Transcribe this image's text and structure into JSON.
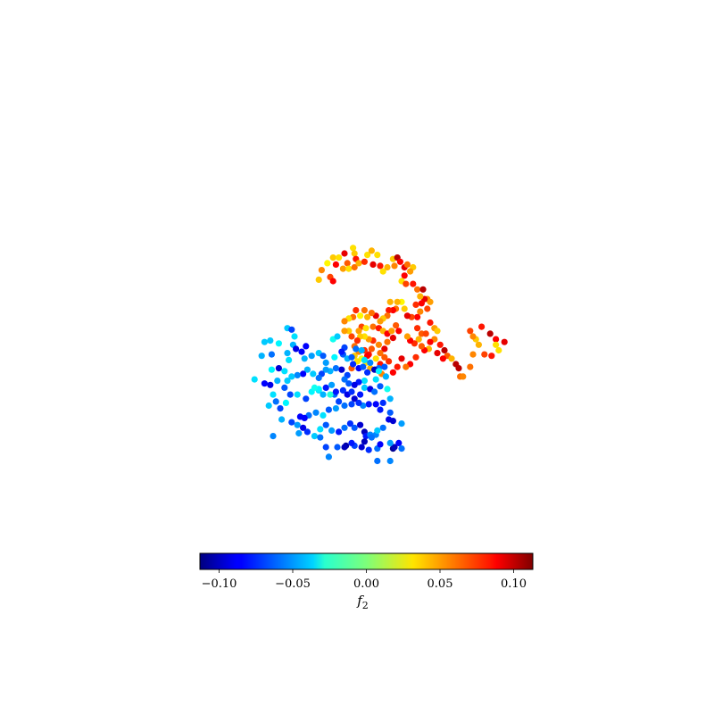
{
  "chart_data": {
    "type": "scatter",
    "title": "",
    "xlabel": "",
    "ylabel": "",
    "axes_visible": false,
    "grid": false,
    "colormap": "jet",
    "colorbar": {
      "orientation": "horizontal",
      "placement": "bottom",
      "label": "f",
      "label_subscript": "2",
      "vmin": -0.113,
      "vmax": 0.113,
      "ticks": [
        -0.1,
        -0.05,
        0.0,
        0.05,
        0.1
      ],
      "tick_labels": [
        "−0.10",
        "−0.05",
        "0.00",
        "0.05",
        "0.10"
      ]
    },
    "x_range": [
      -1,
      1
    ],
    "y_range": [
      -1,
      1
    ],
    "points": [
      [
        -0.14,
        0.84,
        0.035
      ],
      [
        -0.2,
        0.8,
        0.09
      ],
      [
        -0.13,
        0.8,
        0.04
      ],
      [
        -0.12,
        0.76,
        0.08
      ],
      [
        -0.18,
        0.73,
        0.065
      ],
      [
        -0.28,
        0.77,
        0.04
      ],
      [
        -0.24,
        0.77,
        0.035
      ],
      [
        -0.26,
        0.72,
        0.085
      ],
      [
        -0.32,
        0.73,
        0.03
      ],
      [
        -0.36,
        0.68,
        0.055
      ],
      [
        -0.38,
        0.61,
        0.04
      ],
      [
        -0.3,
        0.63,
        0.07
      ],
      [
        -0.28,
        0.6,
        0.085
      ],
      [
        -0.21,
        0.69,
        0.05
      ],
      [
        -0.17,
        0.69,
        0.035
      ],
      [
        -0.13,
        0.7,
        0.06
      ],
      [
        -0.1,
        0.73,
        0.045
      ],
      [
        -0.06,
        0.74,
        0.075
      ],
      [
        -0.04,
        0.79,
        0.035
      ],
      [
        -0.01,
        0.82,
        0.045
      ],
      [
        0.03,
        0.79,
        0.035
      ],
      [
        0.0,
        0.72,
        0.09
      ],
      [
        0.05,
        0.71,
        0.08
      ],
      [
        0.07,
        0.67,
        0.035
      ],
      [
        0.1,
        0.7,
        0.045
      ],
      [
        0.14,
        0.76,
        0.04
      ],
      [
        0.15,
        0.71,
        0.055
      ],
      [
        0.17,
        0.77,
        0.1
      ],
      [
        0.19,
        0.74,
        0.085
      ],
      [
        0.22,
        0.7,
        0.09
      ],
      [
        0.24,
        0.72,
        0.06
      ],
      [
        0.28,
        0.7,
        0.04
      ],
      [
        0.26,
        0.67,
        0.05
      ],
      [
        0.22,
        0.64,
        0.085
      ],
      [
        0.2,
        0.6,
        0.035
      ],
      [
        0.23,
        0.58,
        0.07
      ],
      [
        0.28,
        0.58,
        0.08
      ],
      [
        0.31,
        0.54,
        0.06
      ],
      [
        0.35,
        0.54,
        0.1
      ],
      [
        0.38,
        0.47,
        0.055
      ],
      [
        0.4,
        0.45,
        0.05
      ],
      [
        0.36,
        0.47,
        0.09
      ],
      [
        0.33,
        0.49,
        0.045
      ],
      [
        0.34,
        0.44,
        0.085
      ],
      [
        0.3,
        0.43,
        0.075
      ],
      [
        0.38,
        0.4,
        0.07
      ],
      [
        0.33,
        0.38,
        0.055
      ],
      [
        0.31,
        0.34,
        0.085
      ],
      [
        0.27,
        0.34,
        0.07
      ],
      [
        0.24,
        0.35,
        0.09
      ],
      [
        0.22,
        0.4,
        0.04
      ],
      [
        0.2,
        0.45,
        0.03
      ],
      [
        0.17,
        0.45,
        0.045
      ],
      [
        0.16,
        0.4,
        0.06
      ],
      [
        0.14,
        0.39,
        0.085
      ],
      [
        0.12,
        0.45,
        0.045
      ],
      [
        0.11,
        0.39,
        0.08
      ],
      [
        0.1,
        0.35,
        0.06
      ],
      [
        0.07,
        0.33,
        0.04
      ],
      [
        0.05,
        0.31,
        0.05
      ],
      [
        0.02,
        0.35,
        0.09
      ],
      [
        -0.01,
        0.37,
        0.06
      ],
      [
        -0.04,
        0.34,
        0.045
      ],
      [
        -0.06,
        0.39,
        0.06
      ],
      [
        -0.09,
        0.35,
        0.03
      ],
      [
        -0.12,
        0.39,
        0.075
      ],
      [
        -0.14,
        0.34,
        0.06
      ],
      [
        -0.17,
        0.33,
        0.035
      ],
      [
        -0.2,
        0.31,
        0.055
      ],
      [
        -0.08,
        0.27,
        0.07
      ],
      [
        -0.1,
        0.24,
        0.05
      ],
      [
        -0.05,
        0.26,
        0.035
      ],
      [
        0.0,
        0.27,
        0.06
      ],
      [
        0.04,
        0.26,
        0.08
      ],
      [
        0.07,
        0.24,
        0.045
      ],
      [
        0.1,
        0.22,
        0.085
      ],
      [
        0.13,
        0.24,
        0.05
      ],
      [
        0.16,
        0.28,
        0.065
      ],
      [
        0.18,
        0.24,
        0.085
      ],
      [
        0.14,
        0.19,
        0.09
      ],
      [
        0.1,
        0.16,
        0.06
      ],
      [
        0.08,
        0.11,
        0.09
      ],
      [
        0.05,
        0.08,
        0.06
      ],
      [
        0.04,
        0.14,
        0.055
      ],
      [
        0.0,
        0.17,
        0.075
      ],
      [
        -0.03,
        0.18,
        0.05
      ],
      [
        -0.06,
        0.2,
        0.035
      ],
      [
        -0.09,
        0.2,
        0.04
      ],
      [
        -0.11,
        0.17,
        0.075
      ],
      [
        -0.13,
        0.13,
        0.06
      ],
      [
        -0.15,
        0.2,
        0.07
      ],
      [
        -0.17,
        0.24,
        0.04
      ],
      [
        -0.2,
        0.24,
        0.05
      ],
      [
        -0.01,
        0.11,
        0.065
      ],
      [
        0.02,
        0.04,
        0.035
      ],
      [
        -0.03,
        0.07,
        0.08
      ],
      [
        0.31,
        0.26,
        0.075
      ],
      [
        0.34,
        0.22,
        0.065
      ],
      [
        0.32,
        0.18,
        0.045
      ],
      [
        0.29,
        0.15,
        0.075
      ],
      [
        0.26,
        0.17,
        0.085
      ],
      [
        0.24,
        0.2,
        0.05
      ],
      [
        0.4,
        0.3,
        0.08
      ],
      [
        0.43,
        0.26,
        0.05
      ],
      [
        0.45,
        0.24,
        0.04
      ],
      [
        0.43,
        0.18,
        0.055
      ],
      [
        0.47,
        0.14,
        0.08
      ],
      [
        0.5,
        0.1,
        0.1
      ],
      [
        0.52,
        0.06,
        0.065
      ],
      [
        0.55,
        0.04,
        0.045
      ],
      [
        0.49,
        0.04,
        0.085
      ],
      [
        0.45,
        0.08,
        0.09
      ],
      [
        0.4,
        0.16,
        0.085
      ],
      [
        0.37,
        0.22,
        0.07
      ],
      [
        0.39,
        0.11,
        0.045
      ],
      [
        0.36,
        0.1,
        0.085
      ],
      [
        0.34,
        0.13,
        0.065
      ],
      [
        0.3,
        0.05,
        0.075
      ],
      [
        0.26,
        0.0,
        0.085
      ],
      [
        0.23,
        -0.02,
        0.06
      ],
      [
        0.2,
        0.04,
        0.09
      ],
      [
        0.17,
        -0.02,
        0.08
      ],
      [
        0.14,
        -0.06,
        0.085
      ],
      [
        0.11,
        0.02,
        0.075
      ],
      [
        0.08,
        0.05,
        0.065
      ],
      [
        0.05,
        0.0,
        0.08
      ],
      [
        0.06,
        -0.07,
        0.055
      ],
      [
        0.02,
        -0.04,
        0.07
      ],
      [
        -0.02,
        -0.03,
        0.045
      ],
      [
        -0.05,
        0.01,
        0.035
      ],
      [
        -0.08,
        0.04,
        0.025
      ],
      [
        -0.11,
        0.02,
        0.035
      ],
      [
        -0.13,
        0.06,
        0.04
      ],
      [
        -0.1,
        0.09,
        0.055
      ],
      [
        -0.06,
        0.1,
        0.075
      ],
      [
        -0.04,
        0.06,
        0.085
      ],
      [
        -0.15,
        -0.03,
        0.065
      ],
      [
        0.58,
        0.0,
        0.1
      ],
      [
        0.6,
        -0.03,
        0.1
      ],
      [
        0.61,
        -0.09,
        0.06
      ],
      [
        0.63,
        -0.09,
        0.055
      ],
      [
        0.68,
        -0.02,
        0.06
      ],
      [
        0.68,
        0.24,
        0.07
      ],
      [
        0.72,
        0.18,
        0.04
      ],
      [
        0.74,
        0.14,
        0.045
      ],
      [
        0.76,
        0.27,
        0.08
      ],
      [
        0.82,
        0.22,
        0.1
      ],
      [
        0.86,
        0.18,
        0.085
      ],
      [
        0.86,
        0.14,
        0.035
      ],
      [
        0.88,
        0.1,
        0.035
      ],
      [
        0.92,
        0.16,
        0.09
      ],
      [
        0.7,
        0.07,
        0.055
      ],
      [
        0.78,
        0.07,
        0.07
      ],
      [
        0.83,
        0.06,
        0.08
      ],
      [
        0.7,
        0.2,
        0.055
      ],
      [
        -0.6,
        0.26,
        -0.04
      ],
      [
        -0.57,
        0.25,
        -0.07
      ],
      [
        -0.55,
        0.2,
        -0.035
      ],
      [
        -0.56,
        0.14,
        -0.045
      ],
      [
        -0.6,
        0.08,
        -0.045
      ],
      [
        -0.59,
        0.03,
        -0.035
      ],
      [
        -0.54,
        0.11,
        -0.09
      ],
      [
        -0.5,
        0.09,
        -0.085
      ],
      [
        -0.47,
        0.13,
        -0.085
      ],
      [
        -0.48,
        0.04,
        -0.045
      ],
      [
        -0.43,
        0.06,
        -0.05
      ],
      [
        -0.38,
        0.08,
        -0.04
      ],
      [
        -0.35,
        0.06,
        -0.065
      ],
      [
        -0.33,
        0.01,
        -0.05
      ],
      [
        -0.27,
        0.05,
        -0.03
      ],
      [
        -0.21,
        0.07,
        -0.065
      ],
      [
        -0.18,
        0.04,
        -0.045
      ],
      [
        -0.15,
        0.05,
        -0.065
      ],
      [
        -0.14,
        0.0,
        -0.075
      ],
      [
        -0.1,
        -0.03,
        -0.085
      ],
      [
        -0.07,
        -0.02,
        -0.065
      ],
      [
        -0.04,
        -0.06,
        -0.075
      ],
      [
        -0.06,
        -0.12,
        -0.035
      ],
      [
        -0.1,
        -0.13,
        -0.08
      ],
      [
        -0.13,
        -0.15,
        -0.09
      ],
      [
        -0.17,
        -0.14,
        -0.065
      ],
      [
        -0.18,
        -0.08,
        -0.07
      ],
      [
        -0.2,
        -0.11,
        -0.06
      ],
      [
        -0.22,
        -0.04,
        -0.095
      ],
      [
        -0.26,
        -0.03,
        -0.06
      ],
      [
        -0.3,
        -0.05,
        -0.045
      ],
      [
        -0.33,
        -0.04,
        -0.05
      ],
      [
        -0.36,
        -0.07,
        -0.07
      ],
      [
        -0.38,
        -0.1,
        -0.06
      ],
      [
        -0.42,
        -0.07,
        -0.04
      ],
      [
        -0.46,
        -0.04,
        -0.045
      ],
      [
        -0.49,
        -0.07,
        -0.085
      ],
      [
        -0.53,
        -0.08,
        -0.055
      ],
      [
        -0.57,
        -0.09,
        -0.04
      ],
      [
        -0.6,
        -0.12,
        -0.04
      ],
      [
        -0.62,
        -0.05,
        -0.035
      ],
      [
        -0.66,
        -0.03,
        -0.095
      ],
      [
        -0.71,
        -0.04,
        -0.03
      ],
      [
        -0.67,
        -0.12,
        -0.045
      ],
      [
        -0.62,
        -0.17,
        -0.065
      ],
      [
        -0.58,
        -0.22,
        -0.07
      ],
      [
        -0.61,
        -0.28,
        -0.03
      ],
      [
        -0.53,
        -0.22,
        -0.035
      ],
      [
        -0.47,
        -0.25,
        -0.07
      ],
      [
        -0.43,
        -0.2,
        -0.03
      ],
      [
        -0.38,
        -0.19,
        -0.035
      ],
      [
        -0.35,
        -0.22,
        -0.045
      ],
      [
        -0.33,
        -0.17,
        -0.08
      ],
      [
        -0.29,
        -0.15,
        -0.05
      ],
      [
        -0.27,
        -0.22,
        -0.06
      ],
      [
        -0.24,
        -0.27,
        -0.07
      ],
      [
        -0.21,
        -0.19,
        -0.075
      ],
      [
        -0.18,
        -0.22,
        -0.09
      ],
      [
        -0.15,
        -0.2,
        -0.075
      ],
      [
        -0.13,
        -0.25,
        -0.095
      ],
      [
        -0.09,
        -0.22,
        -0.08
      ],
      [
        -0.06,
        -0.17,
        -0.04
      ],
      [
        -0.02,
        -0.18,
        -0.09
      ],
      [
        0.01,
        -0.2,
        -0.06
      ],
      [
        0.05,
        -0.16,
        -0.065
      ],
      [
        0.09,
        -0.09,
        -0.045
      ],
      [
        0.08,
        -0.02,
        -0.065
      ],
      [
        0.04,
        -0.03,
        -0.06
      ],
      [
        0.01,
        -0.04,
        -0.1
      ],
      [
        0.1,
        -0.18,
        -0.025
      ],
      [
        0.12,
        -0.25,
        -0.045
      ],
      [
        0.07,
        -0.28,
        -0.075
      ],
      [
        0.02,
        -0.29,
        -0.085
      ],
      [
        -0.03,
        -0.29,
        -0.08
      ],
      [
        -0.07,
        -0.3,
        -0.055
      ],
      [
        -0.1,
        -0.28,
        -0.075
      ],
      [
        -0.15,
        -0.29,
        -0.07
      ],
      [
        -0.2,
        -0.3,
        -0.06
      ],
      [
        -0.26,
        -0.32,
        -0.05
      ],
      [
        -0.31,
        -0.33,
        -0.065
      ],
      [
        -0.35,
        -0.37,
        -0.035
      ],
      [
        -0.4,
        -0.35,
        -0.055
      ],
      [
        -0.45,
        -0.37,
        -0.06
      ],
      [
        -0.48,
        -0.39,
        -0.085
      ],
      [
        -0.51,
        -0.38,
        -0.085
      ],
      [
        -0.57,
        -0.42,
        -0.07
      ],
      [
        -0.53,
        -0.44,
        -0.05
      ],
      [
        -0.49,
        -0.46,
        -0.09
      ],
      [
        -0.46,
        -0.49,
        -0.075
      ],
      [
        -0.41,
        -0.52,
        -0.04
      ],
      [
        -0.37,
        -0.47,
        -0.035
      ],
      [
        -0.33,
        -0.44,
        -0.065
      ],
      [
        -0.29,
        -0.48,
        -0.05
      ],
      [
        -0.24,
        -0.49,
        -0.08
      ],
      [
        -0.2,
        -0.46,
        -0.06
      ],
      [
        -0.16,
        -0.43,
        -0.075
      ],
      [
        -0.13,
        -0.46,
        -0.065
      ],
      [
        -0.09,
        -0.44,
        -0.095
      ],
      [
        -0.06,
        -0.49,
        -0.1
      ],
      [
        -0.05,
        -0.52,
        -0.08
      ],
      [
        -0.02,
        -0.51,
        -0.055
      ],
      [
        0.02,
        -0.51,
        -0.055
      ],
      [
        0.03,
        -0.48,
        -0.04
      ],
      [
        0.07,
        -0.46,
        -0.06
      ],
      [
        0.11,
        -0.4,
        -0.09
      ],
      [
        0.14,
        -0.41,
        -0.095
      ],
      [
        0.2,
        -0.43,
        -0.05
      ],
      [
        0.12,
        -0.35,
        -0.065
      ],
      [
        0.05,
        -0.33,
        -0.08
      ],
      [
        -0.06,
        -0.56,
        -0.1
      ],
      [
        -0.13,
        -0.59,
        -0.07
      ],
      [
        -0.19,
        -0.59,
        -0.105
      ],
      [
        -0.2,
        -0.6,
        -0.1
      ],
      [
        -0.15,
        -0.57,
        -0.08
      ],
      [
        -0.08,
        -0.6,
        -0.095
      ],
      [
        -0.03,
        -0.62,
        -0.075
      ],
      [
        0.03,
        -0.61,
        -0.06
      ],
      [
        -0.01,
        -0.53,
        -0.06
      ],
      [
        0.05,
        -0.58,
        -0.085
      ],
      [
        0.14,
        -0.61,
        -0.11
      ],
      [
        0.15,
        -0.6,
        -0.1
      ],
      [
        0.18,
        -0.57,
        -0.085
      ],
      [
        0.2,
        -0.61,
        -0.06
      ],
      [
        0.12,
        -0.57,
        -0.05
      ],
      [
        -0.25,
        -0.6,
        -0.065
      ],
      [
        -0.31,
        -0.67,
        -0.055
      ],
      [
        0.12,
        -0.7,
        -0.055
      ],
      [
        -0.37,
        -0.53,
        -0.06
      ],
      [
        -0.33,
        -0.6,
        -0.07
      ],
      [
        0.03,
        -0.7,
        -0.06
      ],
      [
        -0.52,
        -0.5,
        -0.05
      ],
      [
        -0.72,
        0.17,
        -0.04
      ],
      [
        -0.66,
        0.15,
        -0.03
      ],
      [
        -0.71,
        0.07,
        -0.06
      ],
      [
        -0.76,
        0.16,
        -0.04
      ],
      [
        -0.78,
        0.06,
        -0.045
      ],
      [
        -0.83,
        -0.11,
        -0.035
      ],
      [
        -0.72,
        -0.15,
        -0.09
      ],
      [
        -0.76,
        -0.14,
        -0.085
      ],
      [
        -0.7,
        -0.22,
        -0.035
      ],
      [
        -0.68,
        -0.27,
        -0.06
      ],
      [
        -0.73,
        -0.3,
        -0.04
      ],
      [
        -0.65,
        -0.32,
        -0.07
      ],
      [
        -0.7,
        -0.52,
        -0.055
      ],
      [
        -0.64,
        -0.4,
        -0.045
      ],
      [
        -0.38,
        -0.18,
        -0.03
      ],
      [
        -0.41,
        -0.17,
        -0.025
      ],
      [
        -0.3,
        -0.22,
        -0.02
      ],
      [
        -0.26,
        -0.2,
        -0.08
      ],
      [
        0.02,
        -0.11,
        -0.035
      ],
      [
        0.04,
        -0.05,
        -0.03
      ],
      [
        -0.28,
        0.18,
        -0.025
      ],
      [
        -0.25,
        0.2,
        -0.04
      ],
      [
        -0.2,
        0.12,
        -0.07
      ],
      [
        -0.22,
        0.09,
        -0.08
      ],
      [
        -0.12,
        0.11,
        -0.06
      ],
      [
        -0.08,
        0.1,
        -0.045
      ],
      [
        -0.06,
        0.03,
        -0.035
      ],
      [
        -0.02,
        0.01,
        -0.055
      ]
    ]
  }
}
